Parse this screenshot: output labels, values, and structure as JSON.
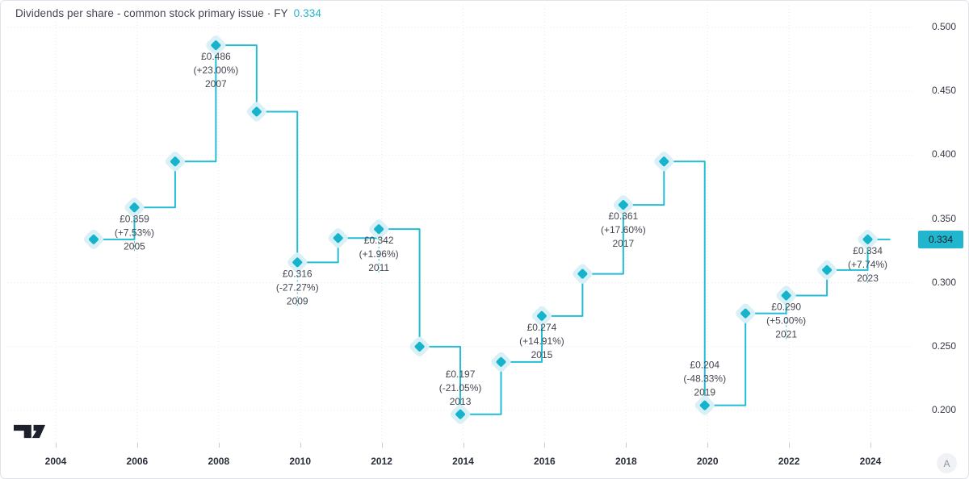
{
  "header": {
    "title": "Dividends per share - common stock primary issue · FY",
    "value": "0.334"
  },
  "colors": {
    "line": "#24bcd4",
    "marker": "#16b3cd",
    "halo": "#d8f0f6",
    "grid": "#e8eaee",
    "text": "#434651",
    "axis_text": "#363a45",
    "badge_bg": "#21b6ce",
    "badge_text": "#0e1d26"
  },
  "chart_data": {
    "type": "line",
    "step": true,
    "title": "Dividends per share - common stock primary issue · FY",
    "currency": "£",
    "x": [
      2004,
      2005,
      2006,
      2007,
      2008,
      2009,
      2010,
      2011,
      2012,
      2013,
      2014,
      2015,
      2016,
      2017,
      2018,
      2019,
      2020,
      2021,
      2022,
      2023
    ],
    "values": [
      0.334,
      0.359,
      0.395,
      0.486,
      0.434,
      0.316,
      0.335,
      0.342,
      0.25,
      0.197,
      0.238,
      0.274,
      0.307,
      0.361,
      0.395,
      0.204,
      0.276,
      0.29,
      0.31,
      0.334
    ],
    "last_value": "0.334",
    "ylim": [
      0.19,
      0.51
    ],
    "yticks": [
      "0.500",
      "0.450",
      "0.400",
      "0.350",
      "0.300",
      "0.250",
      "0.200"
    ],
    "ytick_values": [
      0.5,
      0.45,
      0.4,
      0.35,
      0.3,
      0.25,
      0.2
    ],
    "xticks": [
      2004,
      2006,
      2008,
      2010,
      2012,
      2014,
      2016,
      2018,
      2020,
      2022,
      2024
    ],
    "grid": true,
    "legend_position": "none",
    "annotations": [
      {
        "year": 2005,
        "value_label": "£0.359",
        "change_label": "(+7.53%)",
        "year_label": "2005",
        "position": "below"
      },
      {
        "year": 2007,
        "value_label": "£0.486",
        "change_label": "(+23.00%)",
        "year_label": "2007",
        "position": "below"
      },
      {
        "year": 2009,
        "value_label": "£0.316",
        "change_label": "(-27.27%)",
        "year_label": "2009",
        "position": "below"
      },
      {
        "year": 2011,
        "value_label": "£0.342",
        "change_label": "(+1.96%)",
        "year_label": "2011",
        "position": "below"
      },
      {
        "year": 2013,
        "value_label": "£0.197",
        "change_label": "(-21.05%)",
        "year_label": "2013",
        "position": "above"
      },
      {
        "year": 2015,
        "value_label": "£0.274",
        "change_label": "(+14.91%)",
        "year_label": "2015",
        "position": "below"
      },
      {
        "year": 2017,
        "value_label": "£0.361",
        "change_label": "(+17.60%)",
        "year_label": "2017",
        "position": "below"
      },
      {
        "year": 2019,
        "value_label": "£0.204",
        "change_label": "(-48.33%)",
        "year_label": "2019",
        "position": "above"
      },
      {
        "year": 2021,
        "value_label": "£0.290",
        "change_label": "(+5.00%)",
        "year_label": "2021",
        "position": "below"
      },
      {
        "year": 2023,
        "value_label": "£0.334",
        "change_label": "(+7.74%)",
        "year_label": "2023",
        "position": "below"
      }
    ]
  },
  "axis_badge": {
    "text": "0.334"
  },
  "watermark": {
    "letter": "A"
  },
  "logo_name": "tradingview-logo"
}
